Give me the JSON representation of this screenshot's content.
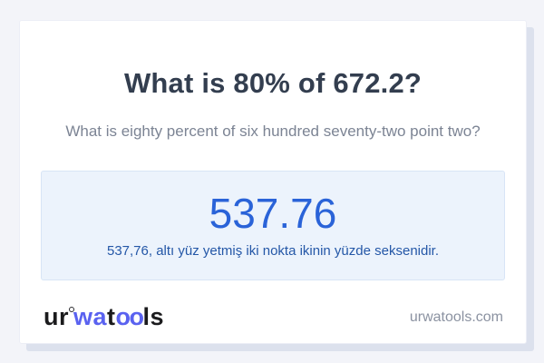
{
  "question": {
    "title": "What is 80% of 672.2?",
    "subtitle": "What is eighty percent of six hundred seventy-two point two?"
  },
  "answer": {
    "value": "537.76",
    "sentence": "537,76, altı yüz yetmiş iki nokta ikinin yüzde seksenidir."
  },
  "footer": {
    "logo_parts": {
      "p1": "ur",
      "p2": "wa",
      "p3": "t",
      "p4": "oo",
      "p5": "ls"
    },
    "domain": "urwatools.com"
  },
  "icons": {
    "logo_ring": "ring-above-w"
  },
  "colors": {
    "page_background": "#f3f4f9",
    "card_background": "#ffffff",
    "card_shadow": "#dce1ed",
    "answer_box_background": "#ecf3fc",
    "answer_box_border": "#d8e5f6",
    "answer_value_blue": "#2a63d8",
    "answer_sentence_blue": "#2457a7",
    "title_color": "#333e4f",
    "subtitle_color": "#7c8494",
    "logo_blue": "#5a62f0",
    "logo_dark": "#1b1b1d",
    "domain_gray": "#8b92a1"
  }
}
